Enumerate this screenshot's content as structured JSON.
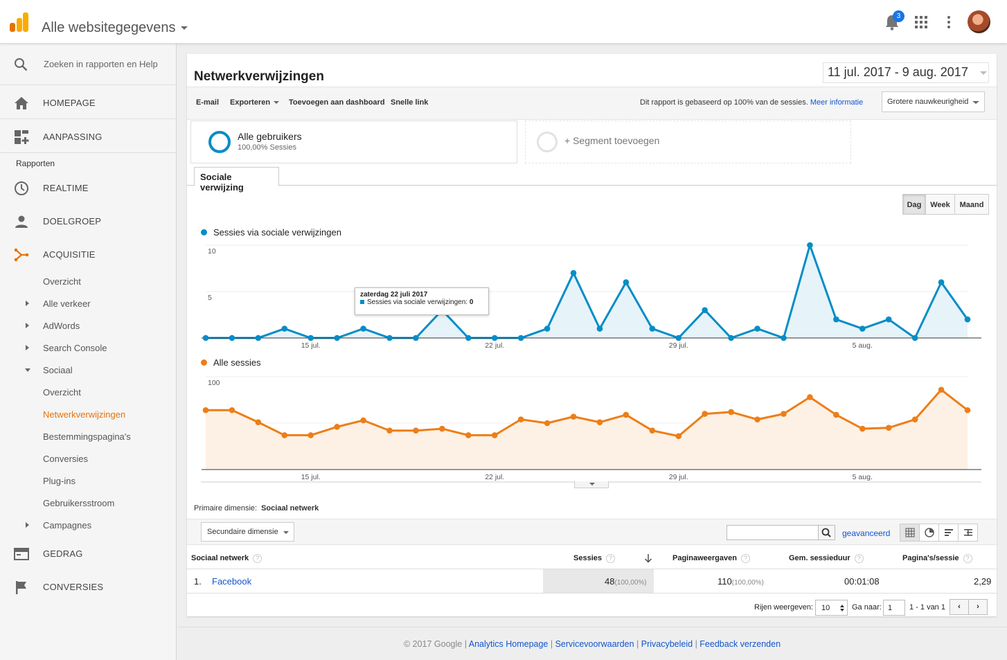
{
  "header": {
    "app_title": "Alle websitegegevens",
    "notification_count": "3",
    "brand_color": "#f9ab00"
  },
  "sidebar": {
    "search_placeholder": "Zoeken in rapporten en Help",
    "homepage": "HOMEPAGE",
    "aanpassing": "AANPASSING",
    "rapporten": "Rapporten",
    "realtime": "REALTIME",
    "doelgroep": "DOELGROEP",
    "acquisitie": "ACQUISITIE",
    "acq_items": [
      "Overzicht",
      "Alle verkeer",
      "AdWords",
      "Search Console",
      "Sociaal"
    ],
    "social_items": [
      "Overzicht",
      "Netwerkverwijzingen",
      "Bestemmingspagina's",
      "Conversies",
      "Plug-ins",
      "Gebruikersstroom"
    ],
    "campagnes": "Campagnes",
    "gedrag": "GEDRAG",
    "conversies": "CONVERSIES",
    "active_color": "#e8710a"
  },
  "report": {
    "title": "Netwerkverwijzingen",
    "date_range": "11 jul. 2017 - 9 aug. 2017",
    "toolbar": {
      "email": "E-mail",
      "export": "Exporteren",
      "add_dashboard": "Toevoegen aan dashboard",
      "quick_link": "Snelle link",
      "based_on": "Dit rapport is gebaseerd op 100% van de sessies.",
      "more_info": "Meer informatie",
      "precision": "Grotere nauwkeurigheid"
    },
    "segments": {
      "primary_name": "Alle gebruikers",
      "primary_sub": "100,00% Sessies",
      "add": "+ Segment toevoegen"
    },
    "tab": "Sociale verwijzing",
    "periods": [
      "Dag",
      "Week",
      "Maand"
    ],
    "active_period": "Dag"
  },
  "chart_data": [
    {
      "type": "area",
      "legend": "Sessies via sociale verwijzingen",
      "color": "#058dc7",
      "yticks": [
        "10",
        "5"
      ],
      "ylim": [
        0,
        10
      ],
      "xticks": [
        "15 jul.",
        "22 jul.",
        "29 jul.",
        "5 aug."
      ],
      "x": [
        "11 jul.",
        "12 jul.",
        "13 jul.",
        "14 jul.",
        "15 jul.",
        "16 jul.",
        "17 jul.",
        "18 jul.",
        "19 jul.",
        "20 jul.",
        "21 jul.",
        "22 jul.",
        "23 jul.",
        "24 jul.",
        "25 jul.",
        "26 jul.",
        "27 jul.",
        "28 jul.",
        "29 jul.",
        "30 jul.",
        "31 jul.",
        "1 aug.",
        "2 aug.",
        "3 aug.",
        "4 aug.",
        "5 aug.",
        "6 aug.",
        "7 aug.",
        "8 aug.",
        "9 aug."
      ],
      "values": [
        0,
        0,
        0,
        1,
        0,
        0,
        1,
        0,
        0,
        3,
        0,
        0,
        0,
        1,
        7,
        1,
        6,
        1,
        0,
        3,
        0,
        1,
        0,
        10,
        2,
        1,
        2,
        0,
        6,
        2
      ],
      "tooltip": {
        "title": "zaterdag 22 juli 2017",
        "label": "Sessies via sociale verwijzingen:",
        "value": "0"
      }
    },
    {
      "type": "area",
      "legend": "Alle sessies",
      "color": "#ed7e17",
      "yticks": [
        "100",
        "50"
      ],
      "ylim": [
        0,
        100
      ],
      "xticks": [
        "15 jul.",
        "22 jul.",
        "29 jul.",
        "5 aug."
      ],
      "x": [
        "11 jul.",
        "12 jul.",
        "13 jul.",
        "14 jul.",
        "15 jul.",
        "16 jul.",
        "17 jul.",
        "18 jul.",
        "19 jul.",
        "20 jul.",
        "21 jul.",
        "22 jul.",
        "23 jul.",
        "24 jul.",
        "25 jul.",
        "26 jul.",
        "27 jul.",
        "28 jul.",
        "29 jul.",
        "30 jul.",
        "31 jul.",
        "1 aug.",
        "2 aug.",
        "3 aug.",
        "4 aug.",
        "5 aug.",
        "6 aug.",
        "7 aug.",
        "8 aug.",
        "9 aug."
      ],
      "values": [
        64,
        64,
        51,
        37,
        37,
        46,
        53,
        42,
        42,
        44,
        37,
        37,
        54,
        50,
        57,
        51,
        59,
        42,
        36,
        60,
        62,
        54,
        60,
        78,
        59,
        44,
        45,
        54,
        86,
        64
      ]
    }
  ],
  "table": {
    "primary_dimension_label": "Primaire dimensie:",
    "primary_dimension_value": "Sociaal netwerk",
    "secondary_dimension": "Secundaire dimensie",
    "advanced": "geavanceerd",
    "columns": [
      "Sociaal netwerk",
      "Sessies",
      "Paginaweergaven",
      "Gem. sessieduur",
      "Pagina's/sessie"
    ],
    "rows": [
      {
        "index": "1.",
        "network": "Facebook",
        "sessions": "48",
        "sessions_pct": "(100,00%)",
        "pageviews": "110",
        "pageviews_pct": "(100,00%)",
        "duration": "00:01:08",
        "pages": "2,29"
      }
    ],
    "pager": {
      "show_rows": "Rijen weergeven:",
      "rows_value": "10",
      "goto": "Ga naar:",
      "goto_value": "1",
      "range": "1 - 1 van 1",
      "prev": "‹",
      "next": "›"
    }
  },
  "footer": {
    "copyright": "© 2017 Google",
    "links": [
      "Analytics Homepage",
      "Servicevoorwaarden",
      "Privacybeleid",
      "Feedback verzenden"
    ]
  }
}
